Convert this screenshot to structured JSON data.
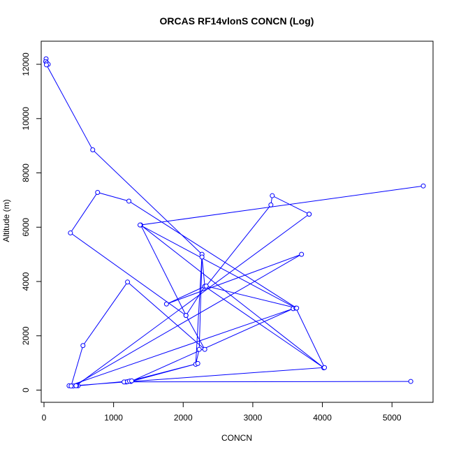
{
  "chart_data": {
    "type": "line",
    "title": "ORCAS RF14vlonS CONCN (Log)",
    "xlabel": "CONCN",
    "ylabel": "Altitude (m)",
    "xlim": [
      -40,
      5590
    ],
    "ylim": [
      -450,
      12850
    ],
    "x_ticks": [
      0,
      1000,
      2000,
      3000,
      4000,
      5000
    ],
    "y_ticks": [
      0,
      2000,
      4000,
      6000,
      8000,
      10000,
      12000
    ],
    "grid": false,
    "legend": "none",
    "series_color": "#0000ff",
    "series": [
      {
        "x": [
          30,
          25,
          40,
          60,
          35,
          700,
          2270,
          2180,
          2230,
          2270,
          2310,
          2040,
          1390,
          4020,
          2310,
          1760,
          3700,
          420,
          360,
          3580,
          1250,
          2210,
          1180,
          5270,
          1150,
          1200,
          1230,
          1260,
          490,
          470,
          4030,
          3620,
          1380,
          5450
        ],
        "y": [
          12200,
          12100,
          12050,
          12000,
          11980,
          8850,
          5000,
          950,
          1500,
          4900,
          3820,
          2750,
          6080,
          820,
          3820,
          3170,
          5000,
          150,
          160,
          3000,
          320,
          980,
          300,
          320,
          300,
          310,
          330,
          340,
          160,
          170,
          830,
          3020,
          6080,
          7520
        ]
      },
      {
        "x": [
          3810,
          3280,
          3260,
          2330,
          3630,
          1220,
          770,
          380,
          2040,
          2310,
          1200,
          560,
          390,
          460,
          3810
        ],
        "y": [
          6480,
          7160,
          6820,
          3830,
          3020,
          6960,
          7280,
          5790,
          2750,
          1500,
          3980,
          1640,
          150,
          160,
          6480
        ]
      }
    ]
  }
}
